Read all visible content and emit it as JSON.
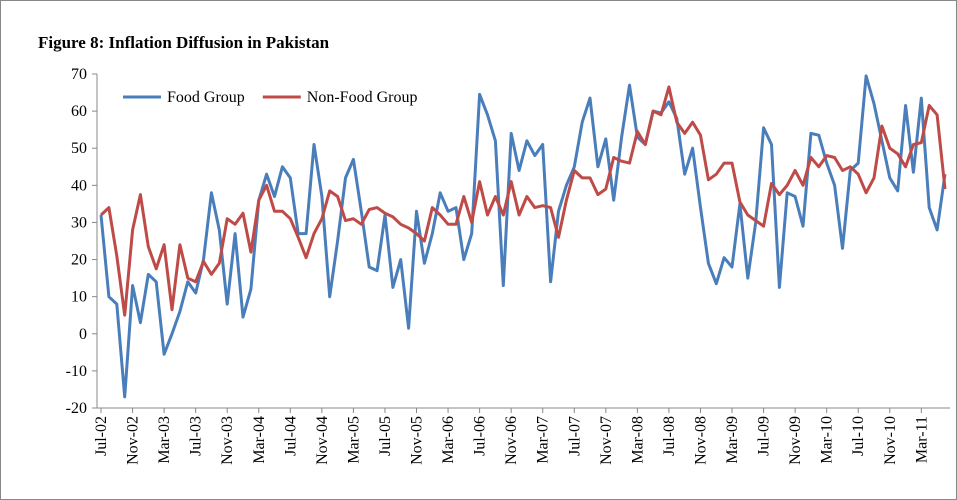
{
  "chart_data": {
    "type": "line",
    "title": "Figure 8: Inflation Diffusion in Pakistan",
    "categories": [
      "Jul-02",
      null,
      null,
      null,
      "Nov-02",
      null,
      null,
      null,
      "Mar-03",
      null,
      null,
      null,
      "Jul-03",
      null,
      null,
      null,
      "Nov-03",
      null,
      null,
      null,
      "Mar-04",
      null,
      null,
      null,
      "Jul-04",
      null,
      null,
      null,
      "Nov-04",
      null,
      null,
      null,
      "Mar-05",
      null,
      null,
      null,
      "Jul-05",
      null,
      null,
      null,
      "Nov-05",
      null,
      null,
      null,
      "Mar-06",
      null,
      null,
      null,
      "Jul-06",
      null,
      null,
      null,
      "Nov-06",
      null,
      null,
      null,
      "Mar-07",
      null,
      null,
      null,
      "Jul-07",
      null,
      null,
      null,
      "Nov-07",
      null,
      null,
      null,
      "Mar-08",
      null,
      null,
      null,
      "Jul-08",
      null,
      null,
      null,
      "Nov-08",
      null,
      null,
      null,
      "Mar-09",
      null,
      null,
      null,
      "Jul-09",
      null,
      null,
      null,
      "Nov-09",
      null,
      null,
      null,
      "Mar-10",
      null,
      null,
      null,
      "Jul-10",
      null,
      null,
      null,
      "Nov-10",
      null,
      null,
      null,
      "Mar-11",
      null,
      null,
      null
    ],
    "series": [
      {
        "name": "Food Group",
        "color": "#4a7ebb",
        "values": [
          32,
          10,
          8,
          -17,
          13,
          3,
          16,
          14,
          -5.5,
          0,
          6,
          14,
          11,
          20,
          38,
          28,
          8,
          27,
          4.5,
          12,
          36,
          43,
          37,
          45,
          42,
          27,
          27,
          51,
          37,
          10,
          25,
          42,
          47,
          33,
          18,
          17,
          32,
          12.5,
          20,
          1.5,
          33,
          19,
          27,
          38,
          33,
          34,
          20,
          27,
          64.5,
          59,
          52,
          13,
          54,
          44,
          52,
          48,
          51,
          14,
          33,
          40,
          45,
          57,
          63.5,
          45,
          52.5,
          36,
          53,
          67,
          53,
          51,
          60,
          59.5,
          62.5,
          58,
          43,
          50,
          34,
          19,
          13.5,
          20.5,
          18,
          35,
          15,
          30,
          55.5,
          51,
          12.5,
          38,
          37,
          29,
          54,
          53.5,
          46,
          40,
          23,
          44,
          46,
          69.5,
          62,
          52,
          42,
          38.5,
          61.5,
          43.5,
          63.5,
          34,
          28,
          43
        ]
      },
      {
        "name": "Non-Food Group",
        "color": "#be4b48",
        "values": [
          32,
          34,
          21,
          5,
          28,
          37.5,
          23.5,
          17.5,
          24,
          6.5,
          24,
          15,
          14,
          19.5,
          16,
          19,
          31,
          29.5,
          32.5,
          22,
          36,
          40,
          33,
          33,
          31,
          26,
          20.5,
          27,
          31,
          38.5,
          37,
          30.5,
          31,
          29.5,
          33.5,
          34,
          32.5,
          31.5,
          29.5,
          28.5,
          27,
          25,
          34,
          32,
          29.5,
          29.5,
          37,
          30,
          41,
          32,
          37,
          32,
          41,
          32,
          37,
          34,
          34.5,
          34,
          26,
          36,
          44,
          42,
          42,
          37.5,
          39,
          47.5,
          46.5,
          46,
          54.5,
          51,
          60,
          59,
          66.5,
          57,
          54,
          57,
          53.5,
          41.5,
          43,
          46,
          46,
          35.5,
          32,
          30.5,
          29,
          40.5,
          37.5,
          40,
          44,
          40,
          47.5,
          45,
          48,
          47.5,
          44,
          45,
          43,
          38,
          42,
          56,
          50,
          48.5,
          45,
          51,
          51.5,
          61.5,
          59,
          39
        ]
      }
    ],
    "ylim": [
      -20,
      70
    ],
    "yticks": [
      -20,
      -10,
      0,
      10,
      20,
      30,
      40,
      50,
      60,
      70
    ],
    "grid": false,
    "legend": "top-left"
  }
}
